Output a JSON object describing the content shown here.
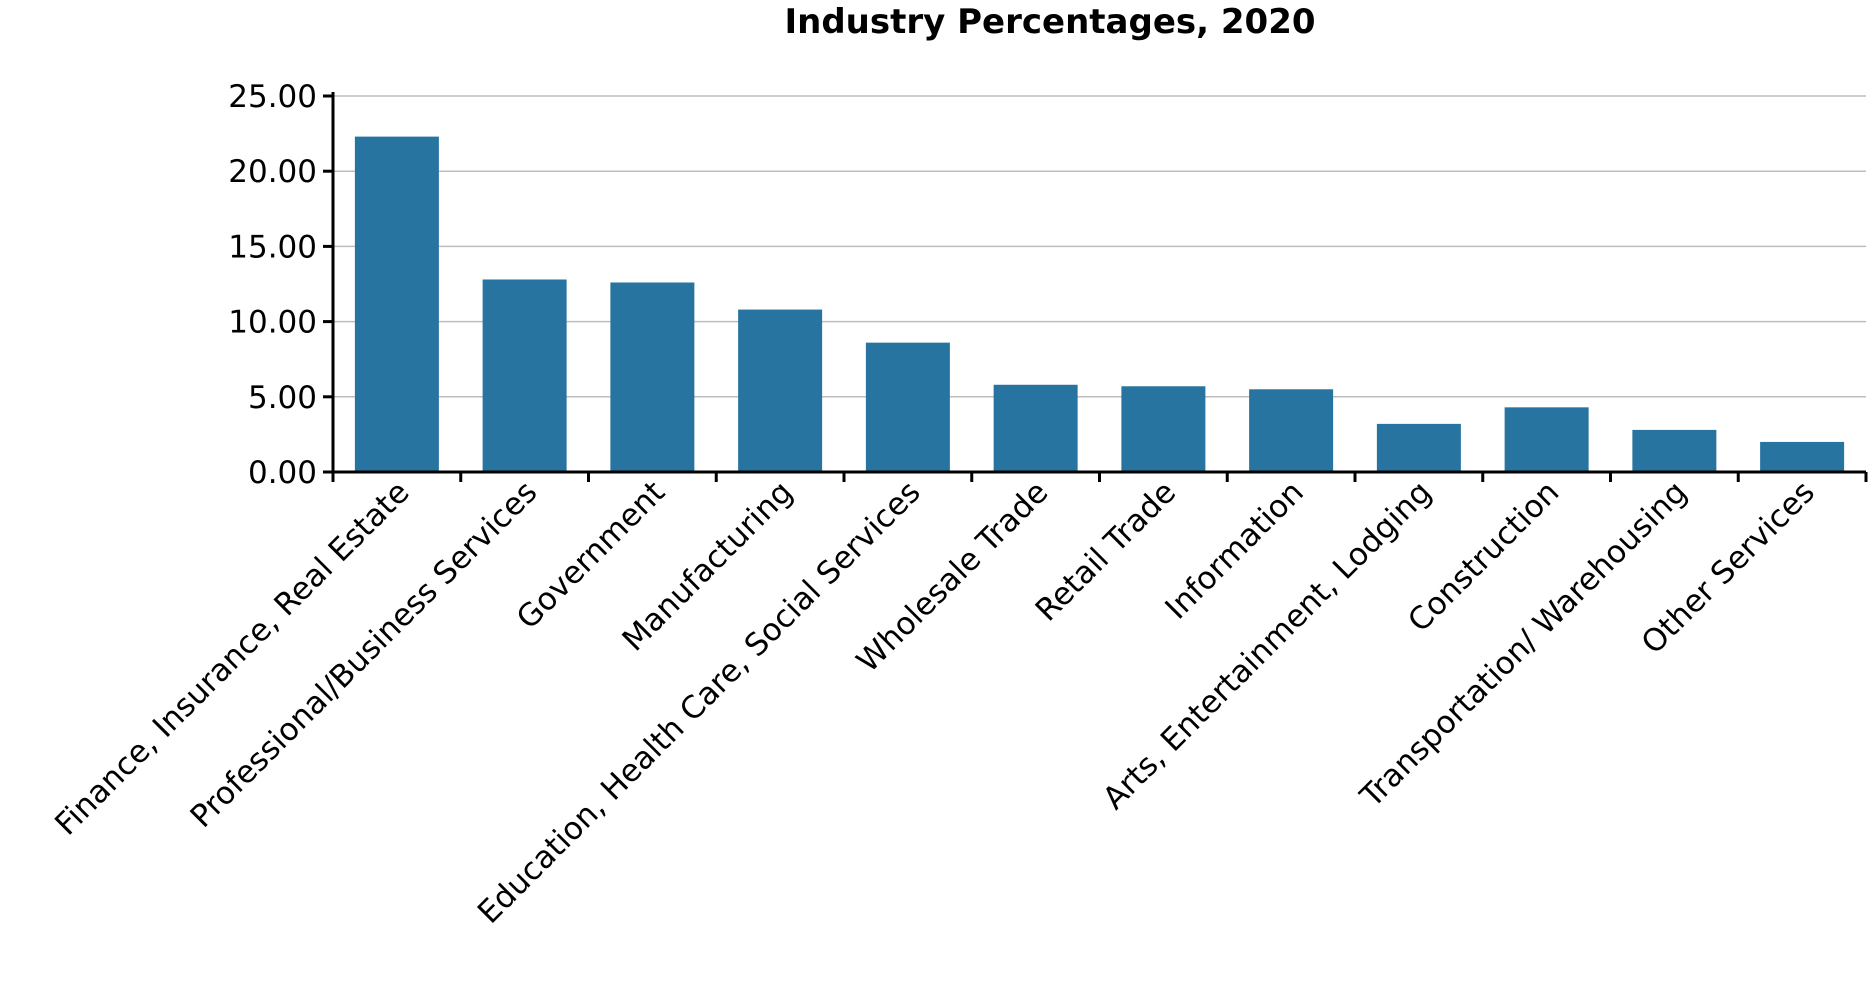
{
  "chart_data": {
    "type": "bar",
    "title": "Industry Percentages, 2020",
    "xlabel": "",
    "ylabel": "",
    "ylim": [
      0,
      25
    ],
    "yticks": [
      "0.00",
      "5.00",
      "10.00",
      "15.00",
      "20.00",
      "25.00"
    ],
    "ytick_values": [
      0,
      5,
      10,
      15,
      20,
      25
    ],
    "grid": true,
    "legend": "none",
    "bar_color": "#2874a0",
    "categories": [
      "Finance, Insurance, Real Estate",
      "Professional/Business Services",
      "Government",
      "Manufacturing",
      "Education, Health Care, Social Services",
      "Wholesale Trade",
      "Retail Trade",
      "Information",
      "Arts, Entertainment, Lodging",
      "Construction",
      "Transportation/ Warehousing",
      "Other Services"
    ],
    "values": [
      22.3,
      12.8,
      12.6,
      10.8,
      8.6,
      5.8,
      5.7,
      5.5,
      3.2,
      4.3,
      2.8,
      2.0
    ]
  }
}
